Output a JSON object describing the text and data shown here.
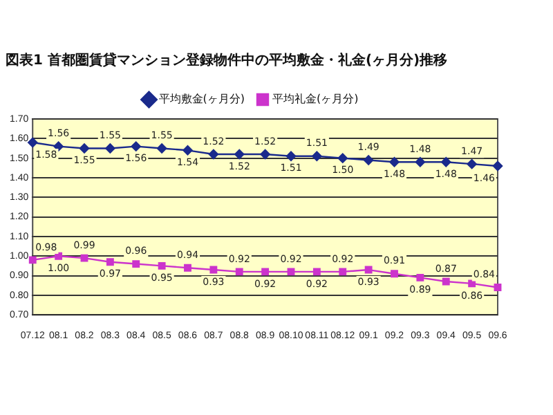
{
  "chart_data": {
    "type": "line",
    "title": "図表1 首都圏賃貸マンション登録物件中の平均敷金・礼金(ヶ月分)推移",
    "categories": [
      "07.12",
      "08.1",
      "08.2",
      "08.3",
      "08.4",
      "08.5",
      "08.6",
      "08.7",
      "08.8",
      "08.9",
      "08.10",
      "08.11",
      "08.12",
      "09.1",
      "09.2",
      "09.3",
      "09.4",
      "09.5",
      "09.6"
    ],
    "series": [
      {
        "name": "平均敷金(ヶ月分)",
        "color": "#1a2a8c",
        "marker": "diamond",
        "values": [
          1.58,
          1.56,
          1.55,
          1.55,
          1.56,
          1.55,
          1.54,
          1.52,
          1.52,
          1.52,
          1.51,
          1.51,
          1.5,
          1.49,
          1.48,
          1.48,
          1.48,
          1.47,
          1.46
        ],
        "value_labels": [
          "1.58",
          "1.56",
          "1.55",
          "1.55",
          "1.56",
          "1.55",
          "1.54",
          "1.52",
          "1.52",
          "1.52",
          "1.51",
          "1.51",
          "1.50",
          "1.49",
          "1.48",
          "1.48",
          "1.48",
          "1.47",
          "1.46"
        ]
      },
      {
        "name": "平均礼金(ヶ月分)",
        "color": "#cc33cc",
        "marker": "square",
        "values": [
          0.98,
          1.0,
          0.99,
          0.97,
          0.96,
          0.95,
          0.94,
          0.93,
          0.92,
          0.92,
          0.92,
          0.92,
          0.92,
          0.93,
          0.91,
          0.89,
          0.87,
          0.86,
          0.84
        ],
        "value_labels": [
          "0.98",
          "1.00",
          "0.99",
          "0.97",
          "0.96",
          "0.95",
          "0.94",
          "0.93",
          "0.92",
          "0.92",
          "0.92",
          "0.92",
          "0.92",
          "0.93",
          "0.91",
          "0.89",
          "0.87",
          "0.86",
          "0.84"
        ]
      }
    ],
    "ylim": [
      0.7,
      1.7
    ],
    "yticks": [
      {
        "value": 0.7,
        "label": "0.70"
      },
      {
        "value": 0.8,
        "label": "0.80"
      },
      {
        "value": 0.9,
        "label": "0.90"
      },
      {
        "value": 1.0,
        "label": "1.00"
      },
      {
        "value": 1.1,
        "label": "1.10"
      },
      {
        "value": 1.2,
        "label": "1.20"
      },
      {
        "value": 1.3,
        "label": "1.30"
      },
      {
        "value": 1.4,
        "label": "1.40"
      },
      {
        "value": 1.5,
        "label": "1.50"
      },
      {
        "value": 1.6,
        "label": "1.60"
      },
      {
        "value": 1.7,
        "label": "1.70"
      }
    ],
    "grid": "y",
    "legend": "top"
  }
}
